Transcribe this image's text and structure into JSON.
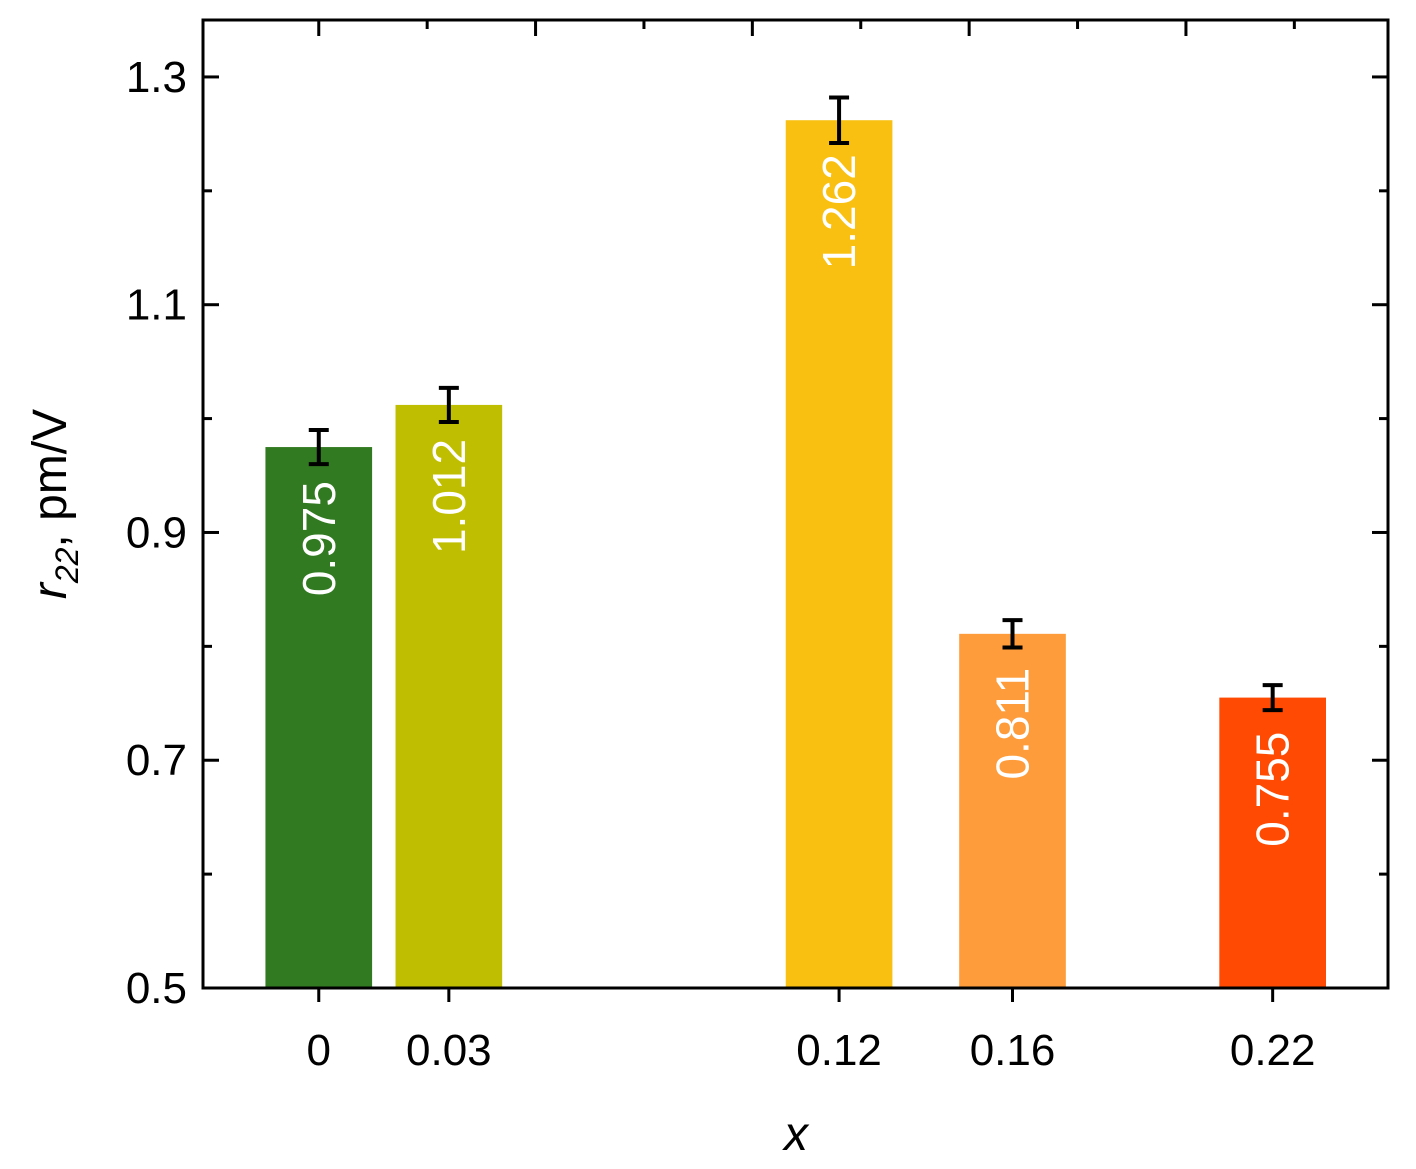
{
  "chart_data": {
    "type": "bar",
    "title": "",
    "xlabel": "x",
    "ylabel": {
      "symbol": "r",
      "subscript": "22",
      "unit": ", pm/V"
    },
    "x": [
      0,
      0.03,
      0.12,
      0.16,
      0.22
    ],
    "categories": [
      "0",
      "0.03",
      "0.12",
      "0.16",
      "0.22"
    ],
    "values": [
      0.975,
      1.012,
      1.262,
      0.811,
      0.755
    ],
    "value_labels": [
      "0.975",
      "1.012",
      "1.262",
      "0.811",
      "0.755"
    ],
    "errors": [
      0.015,
      0.015,
      0.02,
      0.012,
      0.011
    ],
    "colors": [
      "#327a22",
      "#c0be00",
      "#f9c011",
      "#fe9c3c",
      "#fe4a02"
    ],
    "xlim": [
      -0.0267,
      0.2466
    ],
    "ylim": [
      0.5,
      1.35
    ],
    "y_ticks": [
      0.5,
      0.7,
      0.9,
      1.1,
      1.3
    ],
    "y_tick_labels": [
      "0.5",
      "0.7",
      "0.9",
      "1.1",
      "1.3"
    ],
    "y_minor_step": 0.1,
    "bar_width": 0.0246,
    "grid": false,
    "legend": "none"
  }
}
